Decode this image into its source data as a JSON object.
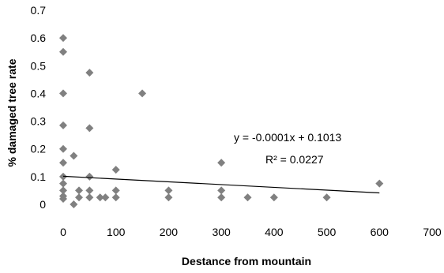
{
  "chart_data": {
    "type": "scatter",
    "xlabel": "Destance from mountain",
    "ylabel": "% damaged tree rate",
    "xlim": [
      0,
      700
    ],
    "ylim": [
      0,
      0.7
    ],
    "x_ticks": [
      "0",
      "100",
      "200",
      "300",
      "400",
      "500",
      "600",
      "700"
    ],
    "y_ticks": [
      "0",
      "0.1",
      "0.2",
      "0.3",
      "0.4",
      "0.5",
      "0.6",
      "0.7"
    ],
    "grid": false,
    "legend": "none",
    "marker": "diamond",
    "marker_color": "#808080",
    "trendline": {
      "equation": "y = -0.0001x + 0.1013",
      "r_squared": "R² = 0.0227",
      "slope": -0.0001,
      "intercept": 0.1013,
      "x_range": [
        0,
        600
      ]
    },
    "points": [
      {
        "x": 0,
        "y": 0.6
      },
      {
        "x": 0,
        "y": 0.55
      },
      {
        "x": 0,
        "y": 0.4
      },
      {
        "x": 0,
        "y": 0.285
      },
      {
        "x": 0,
        "y": 0.2
      },
      {
        "x": 0,
        "y": 0.15
      },
      {
        "x": 0,
        "y": 0.1
      },
      {
        "x": 0,
        "y": 0.075
      },
      {
        "x": 0,
        "y": 0.05
      },
      {
        "x": 0,
        "y": 0.03
      },
      {
        "x": 0,
        "y": 0.02
      },
      {
        "x": 20,
        "y": 0.175
      },
      {
        "x": 20,
        "y": 0
      },
      {
        "x": 30,
        "y": 0.05
      },
      {
        "x": 30,
        "y": 0.025
      },
      {
        "x": 50,
        "y": 0.475
      },
      {
        "x": 50,
        "y": 0.275
      },
      {
        "x": 50,
        "y": 0.1
      },
      {
        "x": 50,
        "y": 0.05
      },
      {
        "x": 50,
        "y": 0.025
      },
      {
        "x": 70,
        "y": 0.025
      },
      {
        "x": 80,
        "y": 0.025
      },
      {
        "x": 100,
        "y": 0.125
      },
      {
        "x": 100,
        "y": 0.05
      },
      {
        "x": 100,
        "y": 0.025
      },
      {
        "x": 150,
        "y": 0.4
      },
      {
        "x": 200,
        "y": 0.05
      },
      {
        "x": 200,
        "y": 0.025
      },
      {
        "x": 300,
        "y": 0.15
      },
      {
        "x": 300,
        "y": 0.05
      },
      {
        "x": 300,
        "y": 0.025
      },
      {
        "x": 350,
        "y": 0.025
      },
      {
        "x": 400,
        "y": 0.025
      },
      {
        "x": 500,
        "y": 0.025
      },
      {
        "x": 600,
        "y": 0.075
      }
    ]
  }
}
